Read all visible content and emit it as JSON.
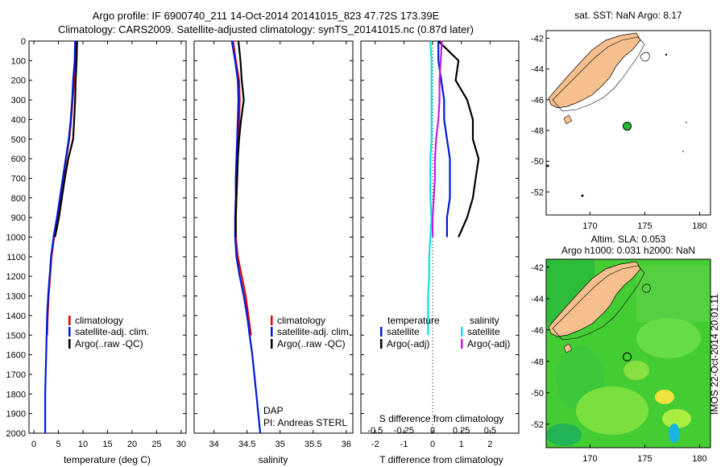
{
  "title": {
    "line1": "Argo profile: IF 6900740_211 14-Oct-2014 20141015_823 47.72S 173.39E",
    "line2": "Climatology: CARS2009. Satellite-adjusted climatology: synTS_20141015.nc (0.87d later)"
  },
  "colors": {
    "climatology": "#e00000",
    "satellite": "#0018d8",
    "argo": "#000000",
    "satellite_s": "#10e0e0",
    "argo_s": "#c020e0",
    "land": "#f5bf8e",
    "ocean_sla": "#33cc33"
  },
  "chart_data": [
    {
      "type": "line",
      "xlabel": "temperature (deg C)",
      "ylabel": "",
      "xlim": [
        -1,
        31
      ],
      "ylim": [
        2000,
        0
      ],
      "xticks": [
        0,
        5,
        10,
        15,
        20,
        25,
        30
      ],
      "yticks": [
        0,
        100,
        200,
        300,
        400,
        500,
        600,
        700,
        800,
        900,
        1000,
        1100,
        1200,
        1300,
        1400,
        1500,
        1600,
        1700,
        1800,
        1900,
        2000
      ],
      "legend": [
        "climatology",
        "satellite-adj. clim.",
        "Argo(..raw -QC)"
      ],
      "series": [
        {
          "name": "climatology",
          "x": [
            8.6,
            8.5,
            8.2,
            7.9,
            7.6,
            7.2,
            6.6,
            6.0,
            5.4,
            4.8,
            4.1,
            3.6,
            3.3,
            3.0,
            2.8,
            2.7
          ],
          "y": [
            0,
            100,
            200,
            300,
            400,
            500,
            600,
            700,
            800,
            900,
            1000,
            1100,
            1200,
            1300,
            1400,
            1500
          ]
        },
        {
          "name": "satellite-adj. clim.",
          "x": [
            8.4,
            8.3,
            8.0,
            7.8,
            7.5,
            7.1,
            6.5,
            5.9,
            5.3,
            4.7,
            4.0,
            3.5,
            3.2,
            2.9,
            2.7,
            2.6,
            2.5,
            2.4,
            2.3,
            2.3,
            2.3
          ],
          "y": [
            0,
            100,
            200,
            300,
            400,
            500,
            600,
            700,
            800,
            900,
            1000,
            1100,
            1200,
            1300,
            1400,
            1500,
            1600,
            1700,
            1800,
            1900,
            2000
          ]
        },
        {
          "name": "Argo(..raw -QC)",
          "x": [
            8.8,
            8.7,
            8.5,
            8.4,
            8.2,
            8.0,
            7.0,
            6.3,
            5.7,
            5.1,
            4.3
          ],
          "y": [
            0,
            100,
            200,
            300,
            400,
            500,
            600,
            700,
            800,
            900,
            1000
          ]
        }
      ]
    },
    {
      "type": "line",
      "xlabel": "salinity",
      "ylabel": "",
      "xlim": [
        33.7,
        36.1
      ],
      "ylim": [
        2000,
        0
      ],
      "xticks": [
        34,
        34.5,
        35,
        35.5,
        36
      ],
      "legend": [
        "climatology",
        "satellite-adj. clim.",
        "Argo(..raw -QC)"
      ],
      "annotations": [
        "DAP",
        "PI: Andreas STERL"
      ],
      "series": [
        {
          "name": "climatology",
          "x": [
            34.29,
            34.33,
            34.38,
            34.39,
            34.38,
            34.37,
            34.36,
            34.35,
            34.34,
            34.33,
            34.33,
            34.36,
            34.42,
            34.48,
            34.52,
            34.56
          ],
          "y": [
            0,
            100,
            200,
            300,
            400,
            500,
            600,
            700,
            800,
            900,
            1000,
            1100,
            1200,
            1300,
            1400,
            1500
          ]
        },
        {
          "name": "satellite-adj. clim.",
          "x": [
            34.27,
            34.32,
            34.36,
            34.37,
            34.36,
            34.35,
            34.34,
            34.33,
            34.33,
            34.32,
            34.32,
            34.34,
            34.39,
            34.45,
            34.5,
            34.54,
            34.58,
            34.61,
            34.64,
            34.67,
            34.7
          ],
          "y": [
            0,
            100,
            200,
            300,
            400,
            500,
            600,
            700,
            800,
            900,
            1000,
            1100,
            1200,
            1300,
            1400,
            1500,
            1600,
            1700,
            1800,
            1900,
            2000
          ]
        },
        {
          "name": "Argo(..raw -QC)",
          "x": [
            34.37,
            34.4,
            34.42,
            34.45,
            34.41,
            34.38,
            34.36,
            34.35,
            34.34,
            34.33,
            34.33
          ],
          "y": [
            0,
            100,
            200,
            300,
            400,
            500,
            600,
            700,
            800,
            900,
            1000
          ]
        }
      ]
    },
    {
      "type": "line",
      "xlabel": "T difference from climatology",
      "xlabel2": "S difference from climatology",
      "ylabel": "",
      "xlim": [
        -2.5,
        3
      ],
      "xlim2": [
        -0.625,
        0.75
      ],
      "ylim": [
        2000,
        0
      ],
      "xticks": [
        -2,
        -1,
        0,
        1,
        2
      ],
      "xticks2": [
        -0.5,
        -0.25,
        0,
        0.25,
        0.5
      ],
      "xticklabels2": [
        "-0.5",
        "-0.25",
        "0",
        "0.25",
        "0.5"
      ],
      "legend_headers": [
        "temperature",
        "salinity"
      ],
      "legend_t": [
        "satellite",
        "Argo(-adj)"
      ],
      "legend_s": [
        "satellite",
        "Argo(-adj)"
      ],
      "series": [
        {
          "name": "temperature satellite",
          "x": [
            0.2,
            0.2,
            0.3,
            0.4,
            0.4,
            0.5,
            0.6,
            0.6,
            0.6,
            0.5,
            0.5
          ],
          "y": [
            0,
            100,
            200,
            300,
            400,
            500,
            600,
            700,
            800,
            900,
            1000
          ]
        },
        {
          "name": "temperature Argo(-adj)",
          "x": [
            0.2,
            0.9,
            0.8,
            1.2,
            1.4,
            1.4,
            1.6,
            1.5,
            1.4,
            1.2,
            0.9
          ],
          "y": [
            0,
            100,
            200,
            300,
            400,
            500,
            600,
            700,
            800,
            900,
            1000
          ]
        },
        {
          "name": "salinity satellite",
          "x": [
            -0.02,
            -0.01,
            -0.01,
            -0.01,
            -0.01,
            -0.01,
            -0.02,
            -0.02,
            -0.02,
            -0.01,
            -0.02,
            -0.03,
            -0.03,
            -0.04,
            -0.04,
            -0.04
          ],
          "y": [
            0,
            100,
            200,
            300,
            400,
            500,
            600,
            700,
            800,
            900,
            1000,
            1100,
            1200,
            1300,
            1400,
            1500
          ]
        },
        {
          "name": "salinity Argo(-adj)",
          "x": [
            0.08,
            0.07,
            0.06,
            0.06,
            0.05,
            0.03,
            0.02,
            0.02,
            0.01,
            0.0,
            0.0
          ],
          "y": [
            0,
            100,
            200,
            300,
            400,
            500,
            600,
            700,
            800,
            900,
            1000
          ]
        }
      ]
    },
    {
      "type": "scatter",
      "title": "sat. SST: NaN Argo: 8.17",
      "xlim": [
        166,
        181
      ],
      "ylim": [
        -53.5,
        -41.5
      ],
      "xticks": [
        170,
        175,
        180
      ],
      "yticks": [
        -42,
        -44,
        -46,
        -48,
        -50,
        -52
      ],
      "argo_position": {
        "lon": 173.39,
        "lat": -47.72
      }
    },
    {
      "type": "heatmap",
      "title_lines": [
        "Altim. SLA: 0.053",
        "Argo h1000: 0.031 h2000: NaN"
      ],
      "xlim": [
        166,
        181
      ],
      "ylim": [
        -53.5,
        -41.5
      ],
      "xticks": [
        170,
        175,
        180
      ],
      "yticks": [
        -42,
        -44,
        -46,
        -48,
        -50,
        -52
      ],
      "side_label": "IMOS 22-Oct-2014 20:01:11",
      "argo_position": {
        "lon": 173.39,
        "lat": -47.72
      }
    }
  ]
}
